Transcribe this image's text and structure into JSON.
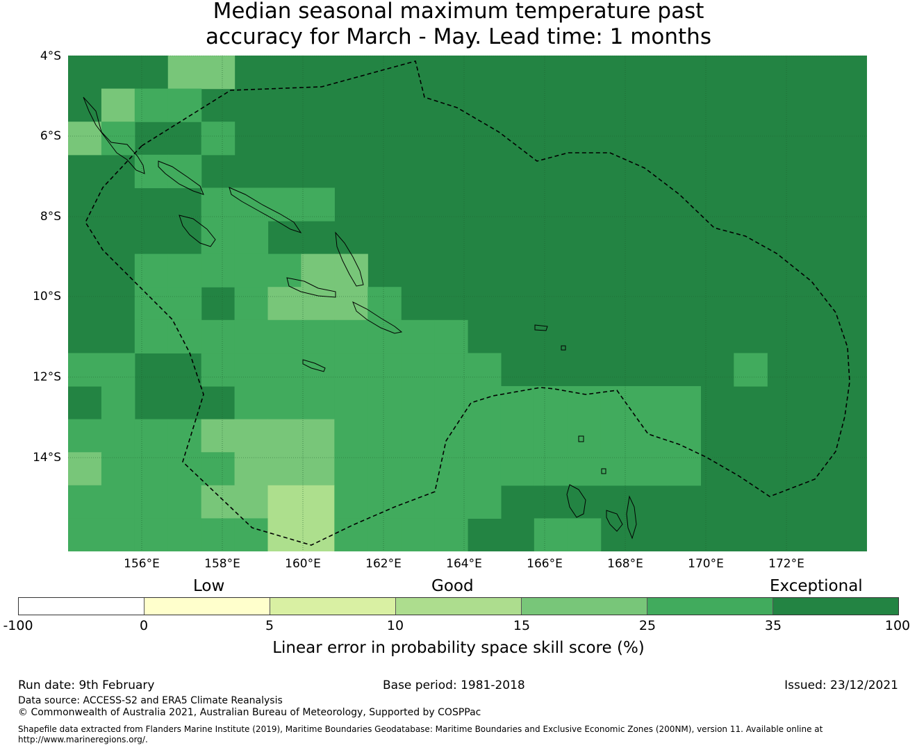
{
  "title": {
    "line1": "Median seasonal maximum temperature past",
    "line2": "accuracy for March - May. Lead time: 1 months"
  },
  "map": {
    "lat_labels": [
      "4°S",
      "6°S",
      "8°S",
      "10°S",
      "12°S",
      "14°S"
    ],
    "lon_labels": [
      "156°E",
      "158°E",
      "160°E",
      "162°E",
      "164°E",
      "166°E",
      "168°E",
      "170°E",
      "172°E"
    ],
    "extent": {
      "lon_min": 154.2,
      "lon_max": 174.0,
      "lat_min": -16.3,
      "lat_max": -4.0
    },
    "grid_cell_deg": 0.83,
    "colors": {
      "0-5": "#feffcf",
      "5-10": "#daf0a1",
      "10-15": "#addf8d",
      "15-25": "#78c679",
      "25-35": "#41ab5d",
      "35-100": "#238443"
    }
  },
  "legend": {
    "categories": [
      "Low",
      "Good",
      "Exceptional"
    ],
    "colors": [
      "#ffffff",
      "#ffffcc",
      "#d9f0a3",
      "#addd8e",
      "#78c679",
      "#41ab5d",
      "#238443"
    ],
    "ticks": [
      "-100",
      "0",
      "5",
      "10",
      "15",
      "25",
      "35",
      "100"
    ],
    "label": "Linear error in probability space skill score (%)"
  },
  "footer": {
    "run_date": "Run date: 9th February",
    "base_period": "Base period: 1981-2018",
    "issued": "Issued: 23/12/2021",
    "data_source": "Data source: ACCESS-S2 and ERA5 Climate Reanalysis",
    "copyright": "© Commonwealth of Australia 2021, Australian Bureau of Meteorology, Supported by COSPPac",
    "shapefile_line1": "Shapefile data extracted from Flanders Marine Institute (2019), Maritime Boundaries Geodatabase: Maritime Boundaries and Exclusive Economic Zones (200NM), version 11. Available online at",
    "shapefile_line2": "http://www.marineregions.org/."
  }
}
